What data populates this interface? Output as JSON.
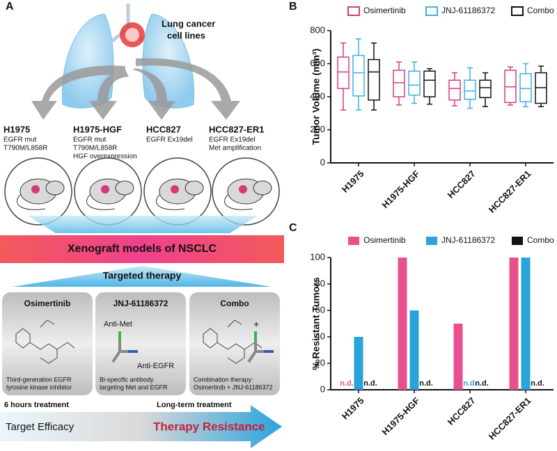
{
  "panel_labels": [
    "A",
    "B",
    "C"
  ],
  "panel_a": {
    "lung_label": [
      "Lung cancer",
      "cell lines"
    ],
    "cell_lines": [
      {
        "name": "H1975",
        "details": [
          "EGFR mut",
          "T790M/L858R"
        ]
      },
      {
        "name": "H1975-HGF",
        "details": [
          "EGFR mut",
          "T790M/L858R",
          "HGF overexpression"
        ]
      },
      {
        "name": "HCC827",
        "details": [
          "EGFR Ex19del"
        ]
      },
      {
        "name": "HCC827-ER1",
        "details": [
          "EGFR Ex19del",
          "Met amplification"
        ]
      }
    ],
    "xenograft": "Xenograft models of NSCLC",
    "targeted": "Targeted therapy",
    "drugs": [
      {
        "name": "Osimertinib",
        "description": [
          "Third-generation EGFR",
          "tyrosine kinase inhibitor"
        ]
      },
      {
        "name": "JNJ-61186372",
        "labels": [
          "Anti-Met",
          "Anti-EGFR"
        ],
        "description": [
          "Bi-specific antibody",
          "targeting Met and EGFR"
        ]
      },
      {
        "name": "Combo",
        "labels": [
          "+"
        ],
        "description": [
          "Combination therapy:",
          "Osimertinib + JNJ-61186372"
        ]
      }
    ],
    "timeline": {
      "short": "6 hours treatment",
      "long": "Long-term treatment",
      "efficacy": "Target Efficacy",
      "resistance": "Therapy Resistance"
    }
  },
  "chart_data": [
    {
      "type": "box",
      "ylabel": "Tumor Volume (mm³)",
      "categories": [
        "H1975",
        "H1975-HGF",
        "HCC827",
        "HCC827-ER1"
      ],
      "series": [
        {
          "name": "Osimertinib",
          "color": "#d63a7a",
          "min": [
            320,
            350,
            345,
            350
          ],
          "q1": [
            450,
            400,
            380,
            365
          ],
          "median": [
            550,
            485,
            450,
            460
          ],
          "q3": [
            640,
            560,
            500,
            560
          ],
          "max": [
            725,
            610,
            545,
            580
          ]
        },
        {
          "name": "JNJ-61186372",
          "color": "#3ab0e0",
          "min": [
            320,
            360,
            330,
            340
          ],
          "q1": [
            405,
            410,
            385,
            370
          ],
          "median": [
            545,
            470,
            435,
            450
          ],
          "q3": [
            650,
            555,
            500,
            540
          ],
          "max": [
            750,
            610,
            575,
            600
          ]
        },
        {
          "name": "Combo",
          "color": "#111111",
          "min": [
            320,
            355,
            340,
            340
          ],
          "q1": [
            380,
            400,
            395,
            360
          ],
          "median": [
            550,
            500,
            455,
            455
          ],
          "q3": [
            625,
            555,
            500,
            545
          ],
          "max": [
            725,
            570,
            545,
            585
          ]
        }
      ],
      "ylim": [
        0,
        800
      ],
      "yticks": [
        0,
        200,
        400,
        600,
        800
      ]
    },
    {
      "type": "bar",
      "ylabel": "% Resistant Tumors",
      "categories": [
        "H1975",
        "H1975-HGF",
        "HCC827",
        "HCC827-ER1"
      ],
      "series": [
        {
          "name": "Osimertinib",
          "color": "#e84f8f",
          "values": [
            null,
            100,
            50,
            100
          ],
          "value_labels": [
            "n.d.",
            null,
            null,
            null
          ]
        },
        {
          "name": "JNJ-61186372",
          "color": "#2aa3dc",
          "values": [
            40,
            60,
            null,
            100
          ],
          "value_labels": [
            null,
            null,
            "n.d.",
            null
          ]
        },
        {
          "name": "Combo",
          "color": "#111111",
          "values": [
            null,
            null,
            null,
            null
          ],
          "value_labels": [
            "n.d.",
            "n.d.",
            "n.d.",
            "n.d."
          ]
        }
      ],
      "ylim": [
        0,
        100
      ],
      "yticks": [
        0,
        20,
        40,
        60,
        80,
        100
      ]
    }
  ]
}
